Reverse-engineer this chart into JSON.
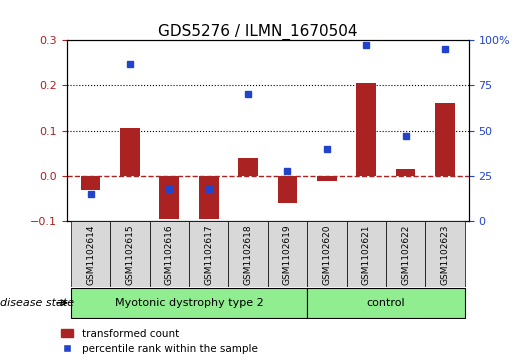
{
  "title": "GDS5276 / ILMN_1670504",
  "samples": [
    "GSM1102614",
    "GSM1102615",
    "GSM1102616",
    "GSM1102617",
    "GSM1102618",
    "GSM1102619",
    "GSM1102620",
    "GSM1102621",
    "GSM1102622",
    "GSM1102623"
  ],
  "red_bars": [
    -0.03,
    0.105,
    -0.095,
    -0.095,
    0.04,
    -0.06,
    -0.01,
    0.205,
    0.015,
    0.16
  ],
  "blue_dots": [
    15,
    87,
    18,
    18,
    70,
    28,
    40,
    97,
    47,
    95
  ],
  "group1_label": "Myotonic dystrophy type 2",
  "group2_label": "control",
  "group1_indices": [
    0,
    1,
    2,
    3,
    4,
    5
  ],
  "group2_indices": [
    6,
    7,
    8,
    9
  ],
  "group_color": "#90EE90",
  "disease_state_label": "disease state",
  "ylim_left": [
    -0.1,
    0.3
  ],
  "ylim_right": [
    0,
    100
  ],
  "yticks_left": [
    -0.1,
    0.0,
    0.1,
    0.2,
    0.3
  ],
  "yticks_right": [
    0,
    25,
    50,
    75,
    100
  ],
  "ytick_labels_right": [
    "0",
    "25",
    "50",
    "75",
    "100%"
  ],
  "dotted_lines": [
    0.1,
    0.2
  ],
  "zero_line_color": "#aa2222",
  "bar_color": "#aa2222",
  "dot_color": "#2244cc",
  "bar_width": 0.5,
  "label_legend_transformed": "transformed count",
  "label_legend_percentile": "percentile rank within the sample"
}
